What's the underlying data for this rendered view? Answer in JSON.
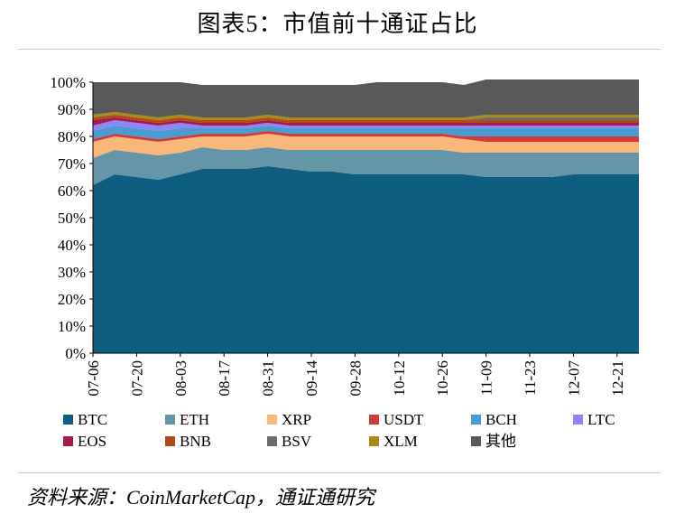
{
  "title": "图表5：市值前十通证占比",
  "source": "资料来源：CoinMarketCap，通证通研究",
  "chart_data": {
    "type": "area",
    "stacked": true,
    "ylim": [
      0,
      100
    ],
    "yticks": [
      "0%",
      "10%",
      "20%",
      "30%",
      "40%",
      "50%",
      "60%",
      "70%",
      "80%",
      "90%",
      "100%"
    ],
    "xticks": [
      "07-06",
      "07-20",
      "08-03",
      "08-17",
      "08-31",
      "09-14",
      "09-28",
      "10-12",
      "10-26",
      "11-09",
      "11-23",
      "12-07",
      "12-21"
    ],
    "legend_position": "bottom",
    "x": [
      "07-06",
      "07-13",
      "07-20",
      "07-27",
      "08-03",
      "08-10",
      "08-17",
      "08-24",
      "08-31",
      "09-07",
      "09-14",
      "09-21",
      "09-28",
      "10-05",
      "10-12",
      "10-19",
      "10-26",
      "11-02",
      "11-09",
      "11-16",
      "11-23",
      "11-30",
      "12-07",
      "12-14",
      "12-21",
      "12-28"
    ],
    "series": [
      {
        "name": "BTC",
        "color": "#0f5e80",
        "values": [
          62,
          66,
          65,
          64,
          66,
          68,
          68,
          68,
          69,
          68,
          67,
          67,
          66,
          66,
          66,
          66,
          66,
          66,
          65,
          65,
          65,
          65,
          66,
          66,
          66,
          66
        ]
      },
      {
        "name": "ETH",
        "color": "#6495a8",
        "values": [
          10,
          9,
          9,
          9,
          8,
          8,
          7,
          7,
          7,
          7,
          8,
          8,
          9,
          9,
          9,
          9,
          9,
          8,
          9,
          9,
          9,
          9,
          8,
          8,
          8,
          8
        ]
      },
      {
        "name": "XRP",
        "color": "#fab77a",
        "values": [
          6,
          5,
          5,
          5,
          5,
          4,
          5,
          5,
          5,
          5,
          5,
          5,
          5,
          5,
          5,
          5,
          5,
          5,
          4,
          4,
          4,
          4,
          4,
          4,
          4,
          4
        ]
      },
      {
        "name": "USDT",
        "color": "#d03a3a",
        "values": [
          1,
          1,
          1,
          1,
          1,
          1,
          1,
          1,
          1,
          1,
          1,
          1,
          1,
          1,
          1,
          1,
          1,
          1,
          2,
          2,
          2,
          2,
          2,
          2,
          2,
          2
        ]
      },
      {
        "name": "BCH",
        "color": "#4a9bd0",
        "values": [
          3,
          3,
          3,
          3,
          3,
          2,
          2,
          2,
          2,
          2,
          2,
          2,
          2,
          2,
          2,
          2,
          2,
          3,
          3,
          3,
          3,
          3,
          3,
          3,
          3,
          3
        ]
      },
      {
        "name": "LTC",
        "color": "#8b87f5",
        "values": [
          2,
          2,
          2,
          2,
          2,
          1,
          1,
          1,
          1,
          1,
          1,
          1,
          1,
          1,
          1,
          1,
          1,
          1,
          1,
          1,
          1,
          1,
          1,
          1,
          1,
          1
        ]
      },
      {
        "name": "EOS",
        "color": "#a8194e",
        "values": [
          2,
          1,
          1,
          1,
          1,
          1,
          1,
          1,
          1,
          1,
          1,
          1,
          1,
          1,
          1,
          1,
          1,
          1,
          1,
          1,
          1,
          1,
          1,
          1,
          1,
          1
        ]
      },
      {
        "name": "BNB",
        "color": "#b04a16",
        "values": [
          1,
          1,
          1,
          1,
          1,
          1,
          1,
          1,
          1,
          1,
          1,
          1,
          1,
          1,
          1,
          1,
          1,
          1,
          1,
          1,
          1,
          1,
          1,
          1,
          1,
          1
        ]
      },
      {
        "name": "BSV",
        "color": "#6d6d6d",
        "values": [
          0,
          0,
          0,
          0,
          0,
          0,
          0,
          0,
          0,
          0,
          0,
          0,
          0,
          0,
          0,
          0,
          0,
          0,
          1,
          1,
          1,
          1,
          1,
          1,
          1,
          1
        ]
      },
      {
        "name": "XLM",
        "color": "#a68a1a",
        "values": [
          1,
          1,
          1,
          1,
          1,
          1,
          1,
          1,
          1,
          1,
          1,
          1,
          1,
          1,
          1,
          1,
          1,
          1,
          1,
          1,
          1,
          1,
          1,
          1,
          1,
          1
        ]
      },
      {
        "name": "其他",
        "color": "#595959",
        "values": [
          12,
          11,
          12,
          13,
          12,
          12,
          12,
          12,
          11,
          12,
          12,
          12,
          12,
          13,
          13,
          13,
          13,
          12,
          13,
          13,
          13,
          13,
          13,
          13,
          13,
          13
        ]
      }
    ]
  }
}
